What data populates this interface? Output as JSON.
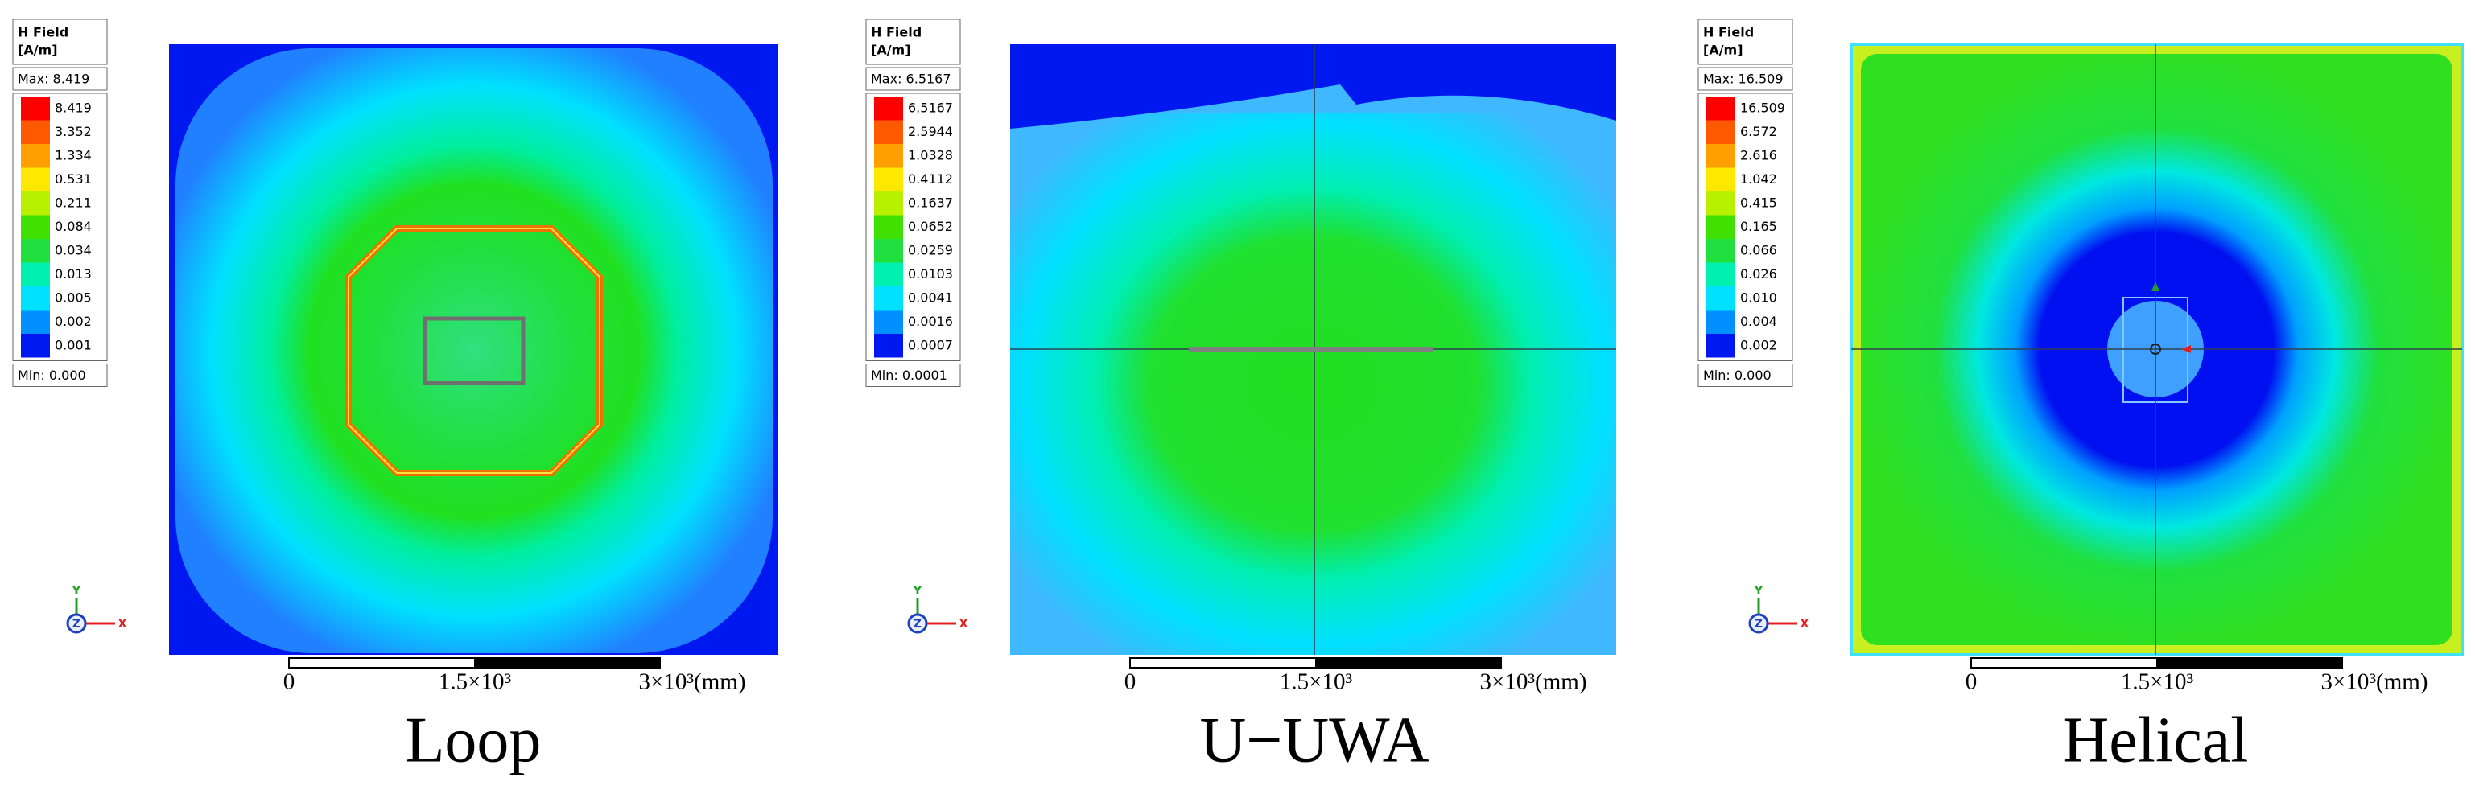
{
  "panels": [
    {
      "caption": "Loop",
      "legend": {
        "title": "H Field",
        "unit": "[A/m]",
        "max": "Max: 8.419",
        "levels": [
          "8.419",
          "3.352",
          "1.334",
          "0.531",
          "0.211",
          "0.084",
          "0.034",
          "0.013",
          "0.005",
          "0.002",
          "0.001"
        ],
        "min": "Min: 0.000"
      },
      "axes": [
        "Y",
        "Z",
        "X"
      ],
      "scale_bar": [
        "0",
        "1.5×10³",
        "3×10³(mm)"
      ]
    },
    {
      "caption": "U−UWA",
      "legend": {
        "title": "H Field",
        "unit": "[A/m]",
        "max": "Max: 6.5167",
        "levels": [
          "6.5167",
          "2.5944",
          "1.0328",
          "0.4112",
          "0.1637",
          "0.0652",
          "0.0259",
          "0.0103",
          "0.0041",
          "0.0016",
          "0.0007"
        ],
        "min": "Min: 0.0001"
      },
      "axes": [
        "Y",
        "Z",
        "X"
      ],
      "scale_bar": [
        "0",
        "1.5×10³",
        "3×10³(mm)"
      ]
    },
    {
      "caption": "Helical",
      "legend": {
        "title": "H Field",
        "unit": "[A/m]",
        "max": "Max: 16.509",
        "levels": [
          "16.509",
          "6.572",
          "2.616",
          "1.042",
          "0.415",
          "0.165",
          "0.066",
          "0.026",
          "0.010",
          "0.004",
          "0.002"
        ],
        "min": "Min:  0.000"
      },
      "axes": [
        "Y",
        "Z",
        "X"
      ],
      "scale_bar": [
        "0",
        "1.5×10³",
        "3×10³(mm)"
      ]
    }
  ]
}
